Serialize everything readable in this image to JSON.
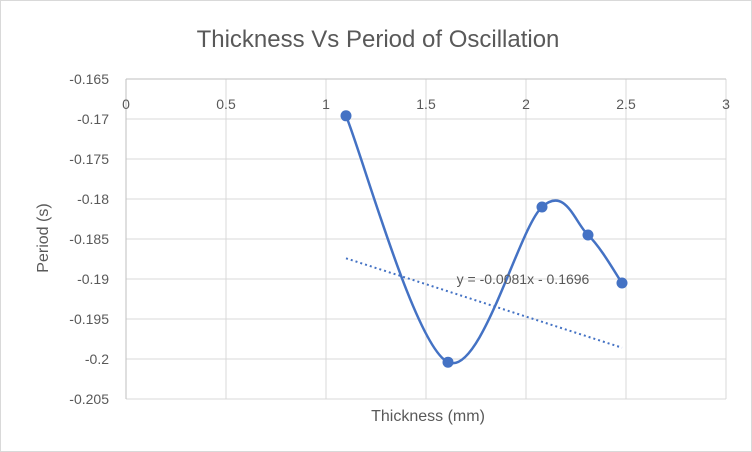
{
  "chart_data": {
    "type": "scatter",
    "title": "Thickness Vs Period of Oscillation",
    "xlabel": "Thickness (mm)",
    "ylabel": "Period (s)",
    "xlim": [
      0,
      3
    ],
    "ylim": [
      -0.205,
      -0.165
    ],
    "x_ticks": [
      0,
      0.5,
      1,
      1.5,
      2,
      2.5,
      3
    ],
    "x_tick_labels": [
      "0",
      "0.5",
      "1",
      "1.5",
      "2",
      "2.5",
      "3"
    ],
    "y_ticks": [
      -0.165,
      -0.17,
      -0.175,
      -0.18,
      -0.185,
      -0.19,
      -0.195,
      -0.2,
      -0.205
    ],
    "y_tick_labels": [
      "-0.165",
      "-0.17",
      "-0.175",
      "-0.18",
      "-0.185",
      "-0.19",
      "-0.195",
      "-0.2",
      "-0.205"
    ],
    "x_axis_position": "top",
    "grid": true,
    "series": [
      {
        "x": [
          1.1,
          1.61,
          2.08,
          2.31,
          2.48
        ],
        "y": [
          -0.1696,
          -0.2004,
          -0.181,
          -0.1845,
          -0.1905
        ],
        "smooth_line": true,
        "color": "#4472c4"
      }
    ],
    "trendline": {
      "type": "linear",
      "slope": -0.0081,
      "intercept": -0.1696,
      "x_range": [
        1.1,
        2.48
      ],
      "equation_label": "y = -0.0081x - 0.1696",
      "color": "#4472c4",
      "style": "dotted"
    }
  }
}
